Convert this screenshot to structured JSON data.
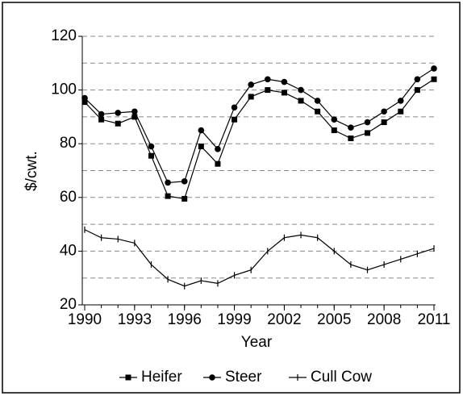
{
  "chart_data": {
    "type": "line",
    "x_label": "Year",
    "y_label": "$/cwt.",
    "x": [
      1990,
      1991,
      1992,
      1993,
      1994,
      1995,
      1996,
      1997,
      1998,
      1999,
      2000,
      2001,
      2002,
      2003,
      2004,
      2005,
      2006,
      2007,
      2008,
      2009,
      2010,
      2011
    ],
    "xlim": [
      1990,
      2011
    ],
    "xticks": [
      1990,
      1993,
      1996,
      1999,
      2002,
      2005,
      2008,
      2011
    ],
    "ylim": [
      20,
      120
    ],
    "yticks": [
      20,
      40,
      60,
      80,
      100,
      120
    ],
    "grid": true,
    "legend": "bottom",
    "series": [
      {
        "name": "Heifer",
        "color": "#000000",
        "marker": "square",
        "values": [
          95.5,
          89,
          87.5,
          90,
          75.5,
          60.5,
          59.5,
          79,
          72.5,
          89,
          97.5,
          100,
          99,
          96,
          92,
          85,
          82,
          84,
          88,
          92,
          100,
          104
        ]
      },
      {
        "name": "Steer",
        "color": "#000000",
        "marker": "circle",
        "values": [
          97,
          91,
          91.5,
          92,
          79,
          65.5,
          66,
          85,
          78,
          93.5,
          102,
          104,
          103,
          100,
          96,
          89,
          86,
          88,
          92,
          96,
          104,
          108
        ]
      },
      {
        "name": "Cull Cow",
        "color": "#000000",
        "marker": "plus",
        "values": [
          48,
          45,
          44.5,
          43,
          35,
          29.5,
          27,
          29,
          28,
          31,
          33,
          40,
          45,
          46,
          45,
          40,
          35,
          33,
          35,
          37,
          39,
          41
        ]
      }
    ]
  }
}
